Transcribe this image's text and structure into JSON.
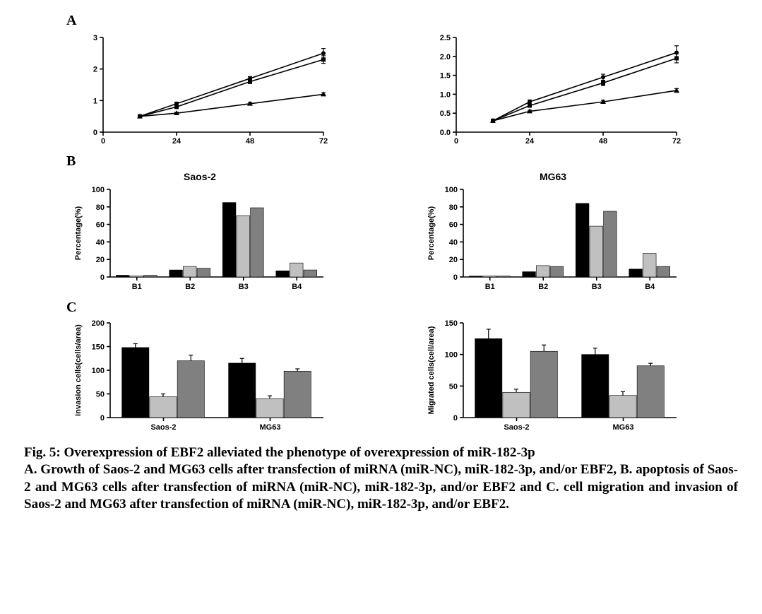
{
  "labels": {
    "A": "A",
    "B": "B",
    "C": "C"
  },
  "caption": {
    "title": "Fig. 5: Overexpression of EBF2 alleviated the phenotype of overexpression of miR-182-3p",
    "body": "A. Growth of Saos-2 and MG63 cells after transfection of miRNA (miR-NC), miR-182-3p, and/or EBF2, B. apoptosis of Saos-2 and MG63 cells after transfection of miRNA (miR-NC), miR-182-3p, and/or EBF2 and C. cell migration and invasion of Saos-2 and MG63 after transfection of miRNA (miR-NC), miR-182-3p, and/or EBF2."
  },
  "panelA": {
    "type": "line",
    "x": [
      12,
      24,
      48,
      72
    ],
    "xticks": [
      0,
      24,
      48,
      72
    ],
    "left": {
      "ylim": [
        0,
        3
      ],
      "ytick_step": 1,
      "series": [
        {
          "marker": "circle",
          "y": [
            0.5,
            0.9,
            1.7,
            2.5
          ],
          "err": [
            0.0,
            0.05,
            0.06,
            0.15
          ]
        },
        {
          "marker": "square",
          "y": [
            0.5,
            0.8,
            1.6,
            2.3
          ],
          "err": [
            0.0,
            0.05,
            0.06,
            0.12
          ]
        },
        {
          "marker": "triangle",
          "y": [
            0.5,
            0.6,
            0.9,
            1.2
          ],
          "err": [
            0.0,
            0.03,
            0.04,
            0.05
          ]
        }
      ]
    },
    "right": {
      "ylim": [
        0,
        2.5
      ],
      "ytick_step": 0.5,
      "series": [
        {
          "marker": "circle",
          "y": [
            0.3,
            0.8,
            1.45,
            2.1
          ],
          "err": [
            0.0,
            0.05,
            0.08,
            0.18
          ]
        },
        {
          "marker": "square",
          "y": [
            0.3,
            0.7,
            1.3,
            1.95
          ],
          "err": [
            0.0,
            0.04,
            0.07,
            0.12
          ]
        },
        {
          "marker": "triangle",
          "y": [
            0.3,
            0.55,
            0.8,
            1.1
          ],
          "err": [
            0.0,
            0.03,
            0.04,
            0.05
          ]
        }
      ]
    },
    "line_color": "#000000",
    "line_width": 1.6,
    "marker_size": 5
  },
  "panelB": {
    "type": "grouped-bar",
    "categories": [
      "B1",
      "B2",
      "B3",
      "B4"
    ],
    "ylabel": "Percentage(%)",
    "ylim": [
      0,
      100
    ],
    "ytick_step": 20,
    "bar_colors": [
      "#000000",
      "#c0c0c0",
      "#808080"
    ],
    "left": {
      "title": "Saos-2",
      "data": [
        [
          2,
          1,
          2
        ],
        [
          8,
          12,
          10
        ],
        [
          85,
          70,
          79
        ],
        [
          7,
          16,
          8
        ]
      ]
    },
    "right": {
      "title": "MG63",
      "data": [
        [
          1,
          1,
          1
        ],
        [
          6,
          13,
          12
        ],
        [
          84,
          58,
          75
        ],
        [
          9,
          27,
          12
        ]
      ]
    },
    "bar_width": 0.26,
    "axis_color": "#000000"
  },
  "panelC": {
    "type": "grouped-bar",
    "categories": [
      "Saos-2",
      "MG63"
    ],
    "bar_colors": [
      "#000000",
      "#c0c0c0",
      "#808080"
    ],
    "left": {
      "ylabel": "invasion cells(cells/area)",
      "ylim": [
        0,
        200
      ],
      "ytick_step": 50,
      "data": [
        [
          148,
          44,
          120
        ],
        [
          115,
          40,
          98
        ]
      ],
      "err": [
        [
          8,
          6,
          12
        ],
        [
          10,
          6,
          5
        ]
      ]
    },
    "right": {
      "ylabel": "Migrated cells(cell/area)",
      "ylim": [
        0,
        150
      ],
      "ytick_step": 50,
      "data": [
        [
          125,
          40,
          105
        ],
        [
          100,
          35,
          82
        ]
      ],
      "err": [
        [
          15,
          5,
          10
        ],
        [
          10,
          6,
          4
        ]
      ]
    },
    "bar_width": 0.26,
    "axis_color": "#000000"
  },
  "style": {
    "background_color": "#ffffff",
    "axis_font": "Arial",
    "axis_fontsize": 11,
    "caption_fontsize": 19
  }
}
